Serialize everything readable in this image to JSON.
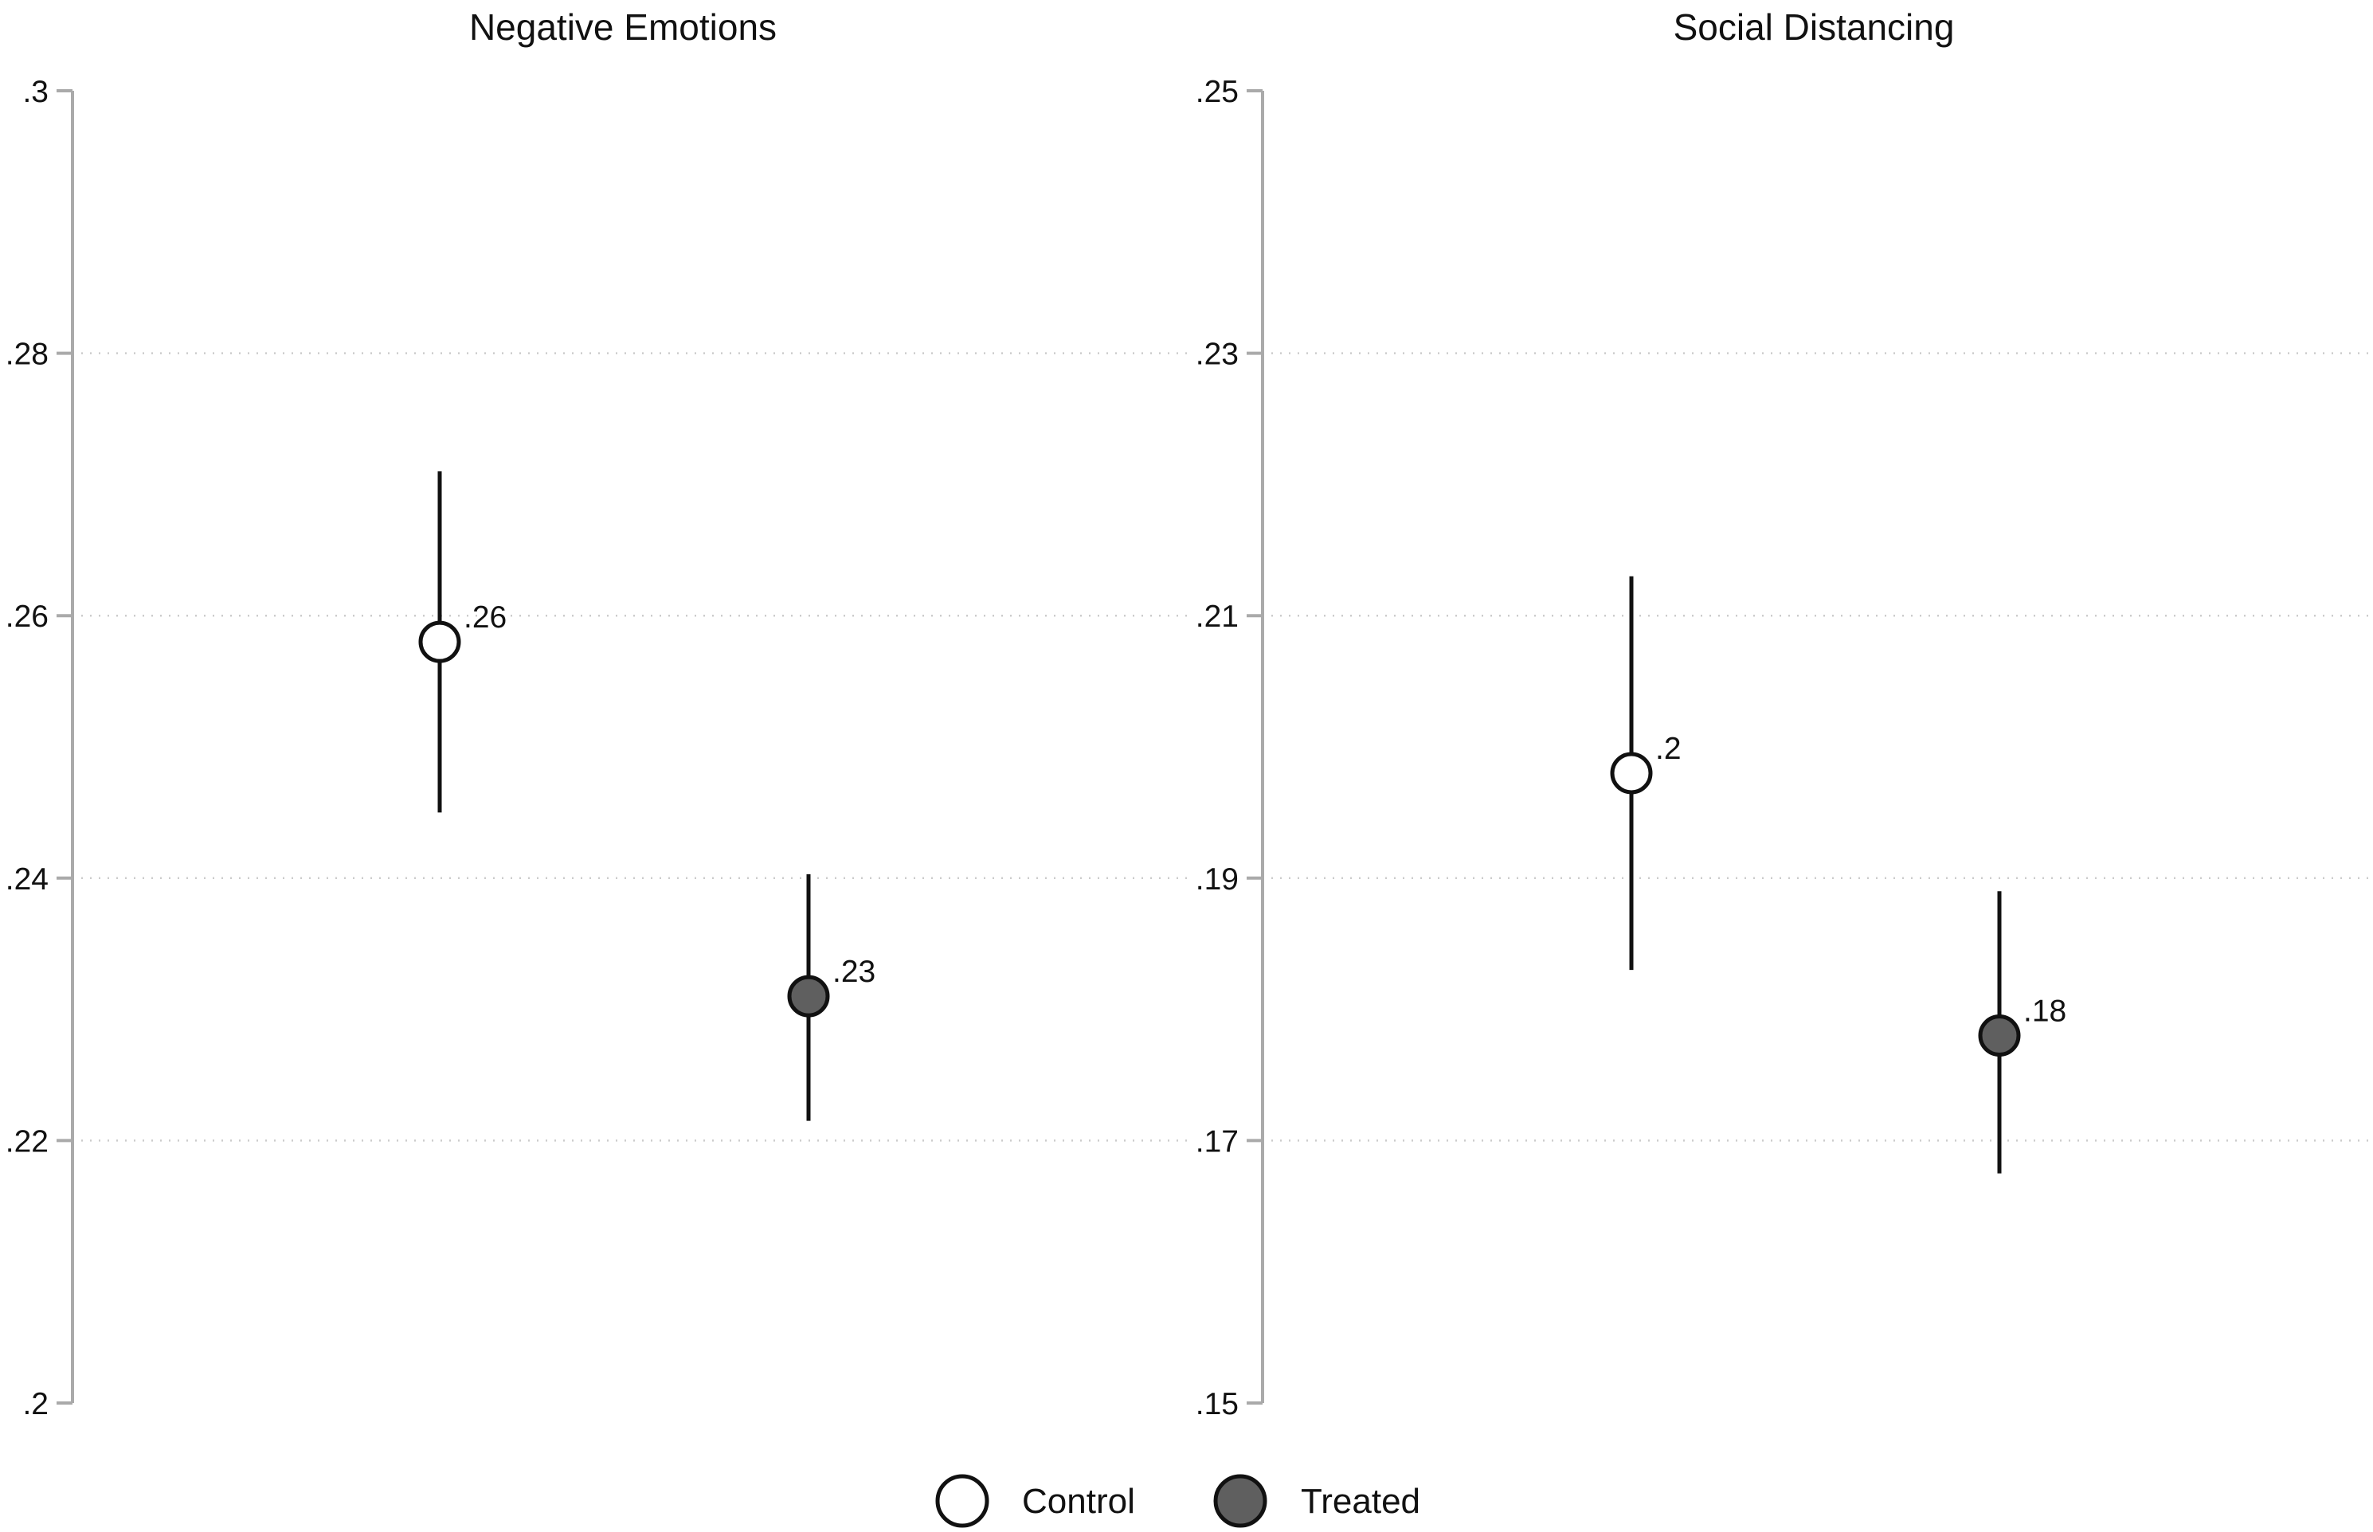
{
  "chart_data": [
    {
      "type": "scatter",
      "title": "Negative Emotions",
      "xlabel": "",
      "ylabel": "",
      "ylim": [
        0.2,
        0.3
      ],
      "yticks": [
        ".3",
        ".28",
        ".26",
        ".24",
        ".22",
        ".2"
      ],
      "ytick_values": [
        0.3,
        0.28,
        0.26,
        0.24,
        0.22,
        0.2
      ],
      "grid": true,
      "points": [
        {
          "group": "Control",
          "value": 0.258,
          "ci_low": 0.245,
          "ci_high": 0.271,
          "label": ".26"
        },
        {
          "group": "Treated",
          "value": 0.231,
          "ci_low": 0.2215,
          "ci_high": 0.2403,
          "label": ".23"
        }
      ]
    },
    {
      "type": "scatter",
      "title": "Social Distancing",
      "xlabel": "",
      "ylabel": "",
      "ylim": [
        0.15,
        0.25
      ],
      "yticks": [
        ".25",
        ".23",
        ".21",
        ".19",
        ".17",
        ".15"
      ],
      "ytick_values": [
        0.25,
        0.23,
        0.21,
        0.19,
        0.17,
        0.15
      ],
      "grid": true,
      "points": [
        {
          "group": "Control",
          "value": 0.198,
          "ci_low": 0.183,
          "ci_high": 0.213,
          "label": ".2"
        },
        {
          "group": "Treated",
          "value": 0.178,
          "ci_low": 0.1675,
          "ci_high": 0.189,
          "label": ".18"
        }
      ]
    }
  ],
  "legend": {
    "position": "bottom",
    "items": [
      {
        "name": "Control",
        "fill": "#ffffff"
      },
      {
        "name": "Treated",
        "fill": "#5f5f5f"
      }
    ]
  },
  "colors": {
    "marker_stroke": "#111111",
    "control_fill": "#ffffff",
    "treated_fill": "#5f5f5f",
    "axis": "#aaaaaa",
    "grid": "#cccccc"
  }
}
